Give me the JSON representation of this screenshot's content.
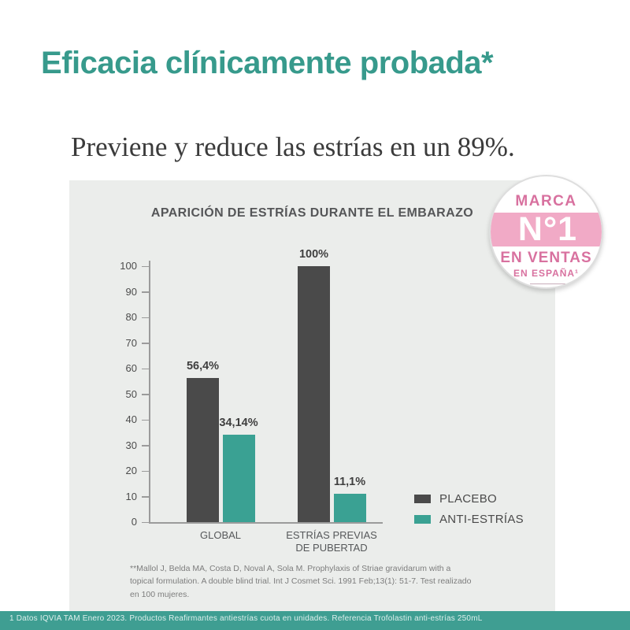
{
  "page": {
    "heading": "Eficacia clínicamente probada*",
    "subtitle": "Previene y reduce las estrías en un 89%.",
    "footnote": "**Mallol J, Belda MA, Costa D, Noval A, Sola M. Prophylaxis of Striae gravidarum with a topical formulation. A double blind trial. Int J Cosmet Sci. 1991 Feb;13(1): 51-7. Test realizado en 100 mujeres.",
    "bottom_bar_text": "1 Datos IQVIA TAM Enero 2023. Productos Reafirmantes antiestrías cuota en unidades. Referencia Trofolastin anti-estrías 250mL"
  },
  "badge": {
    "top_label": "MARCA",
    "rank": "N°1",
    "bottom_label": "EN VENTAS",
    "sub_label": "EN ESPAÑA¹"
  },
  "chart_data": {
    "type": "bar",
    "title": "APARICIÓN DE ESTRÍAS DURANTE EL EMBARAZO",
    "categories": [
      "GLOBAL",
      "ESTRÍAS PREVIAS\nDE PUBERTAD"
    ],
    "series": [
      {
        "name": "PLACEBO",
        "color": "#4a4a4a",
        "values": [
          56.4,
          100
        ],
        "value_labels": [
          "56,4%",
          "100%"
        ]
      },
      {
        "name": "ANTI-ESTRÍAS",
        "color": "#3aa193",
        "values": [
          34.14,
          11.1
        ],
        "value_labels": [
          "34,14%",
          "11,1%"
        ]
      }
    ],
    "xlabel": "",
    "ylabel": "",
    "ylim": [
      0,
      100
    ],
    "ytick_step": 10,
    "grid": false,
    "legend_position": "bottom-right"
  },
  "colors": {
    "accent_teal": "#379a8c",
    "bar_teal": "#3aa193",
    "bar_dark": "#4a4a4a",
    "panel_bg": "#ebedeb",
    "badge_pink_band": "#f1aac6",
    "badge_pink_text": "#d8719f",
    "strip_teal": "#3f9e92"
  }
}
